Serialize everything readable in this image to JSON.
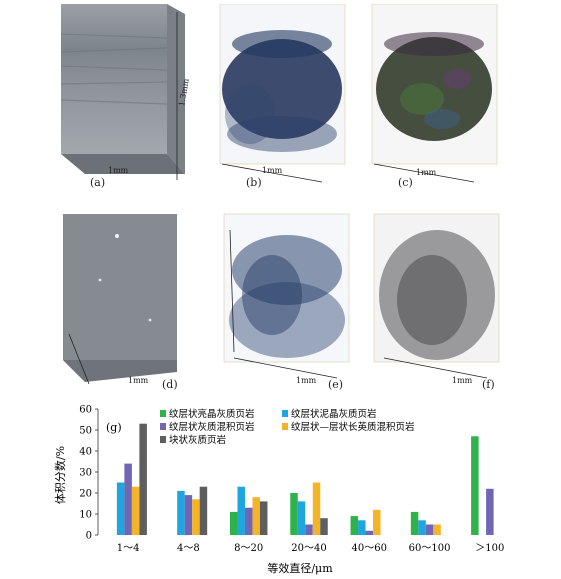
{
  "figure": {
    "panels": [
      {
        "label": "(a)",
        "scale": "1mm",
        "scale2": "1.3mm"
      },
      {
        "label": "(b)",
        "scale": "1mm"
      },
      {
        "label": "(c)",
        "scale": "1mm"
      },
      {
        "label": "(d)",
        "scale": ""
      },
      {
        "label": "(e)",
        "scale": "1mm"
      },
      {
        "label": "(f)",
        "scale": "1mm"
      }
    ],
    "panel_d_scale": "1mm"
  },
  "chart_data": {
    "type": "bar",
    "panel_label": "(g)",
    "categories": [
      "1～4",
      "4～8",
      "8～20",
      "20～40",
      "40～60",
      "60～100",
      "＞100"
    ],
    "series": [
      {
        "name": "纹层状亮晶灰质页岩",
        "color": "#2fb24a",
        "values": [
          null,
          null,
          11,
          20,
          9,
          11,
          47
        ]
      },
      {
        "name": "纹层状泥晶灰质页岩",
        "color": "#1fa6df",
        "values": [
          25,
          21,
          23,
          16,
          7,
          7,
          null
        ]
      },
      {
        "name": "纹层状灰质混积页岩",
        "color": "#6f67b5",
        "values": [
          34,
          19,
          13,
          5,
          2,
          5,
          22
        ]
      },
      {
        "name": "纹层状—层状长英质混积页岩",
        "color": "#f4b42a",
        "values": [
          23,
          17,
          18,
          25,
          12,
          5,
          null
        ]
      },
      {
        "name": "块状灰质页岩",
        "color": "#5e5e5e",
        "values": [
          53,
          23,
          16,
          8,
          null,
          null,
          null
        ]
      }
    ],
    "xlabel": "等效直径/μm",
    "ylabel": "体积分数/%",
    "ylim": [
      0,
      60
    ],
    "yticks": [
      0,
      10,
      20,
      30,
      40,
      50,
      60
    ]
  }
}
